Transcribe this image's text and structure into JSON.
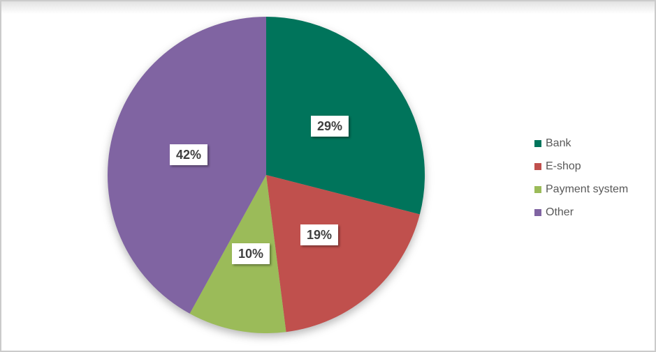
{
  "chart_data": {
    "type": "pie",
    "title": "",
    "categories": [
      "Bank",
      "E-shop",
      "Payment system",
      "Other"
    ],
    "values": [
      29,
      19,
      10,
      42
    ],
    "data_labels": [
      "29%",
      "19%",
      "10%",
      "42%"
    ],
    "colors": [
      "#00745B",
      "#C0504D",
      "#9BBB59",
      "#8064A2"
    ],
    "unit": "%",
    "start_angle_deg": 0,
    "direction": "clockwise",
    "legend_position": "right",
    "legend_entries": [
      "Bank",
      "E-shop",
      "Payment system",
      "Other"
    ],
    "label_text_color": "#3F3F3F",
    "legend_text_color": "#595959",
    "background_color": "#FFFFFF",
    "border_color": "#CBCBCB"
  }
}
